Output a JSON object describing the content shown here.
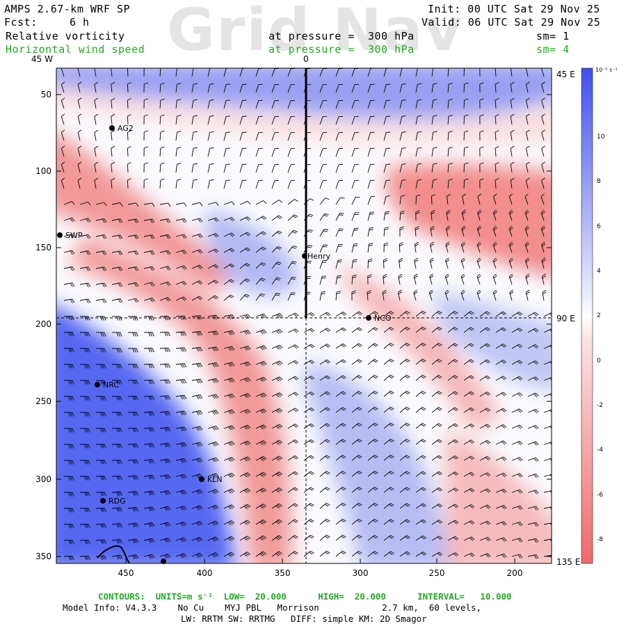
{
  "header": {
    "model": "AMPS 2.67-km WRF SP",
    "forecast_label": "Fcst:",
    "forecast_value": "6 h",
    "init": "Init: 00 UTC Sat 29 Nov 25",
    "valid": "Valid: 06 UTC Sat 29 Nov 25",
    "field1_name": "Relative vorticity",
    "field1_pressure": "at pressure =  300 hPa",
    "field1_sm": "sm= 1",
    "field2_name": "Horizontal wind speed",
    "field2_pressure": "at pressure =  300 hPa",
    "field2_sm": "sm= 4",
    "watermark": "Grid Nav"
  },
  "colors": {
    "positive": "#4455ee",
    "negative": "#f07070",
    "green_text": "#22aa22"
  },
  "map": {
    "longitude_labels": {
      "top_left": "45 W",
      "top_center": "0",
      "right_top": "45 E",
      "right_mid": "90 E",
      "right_bottom": "135 E"
    },
    "y_ticks": [
      "50",
      "100",
      "150",
      "200",
      "250",
      "300",
      "350"
    ],
    "x_ticks": [
      "450",
      "400",
      "350",
      "300",
      "250",
      "200"
    ],
    "stations": [
      {
        "name": "AG2"
      },
      {
        "name": "SWP"
      },
      {
        "name": "Henry"
      },
      {
        "name": "NCO"
      },
      {
        "name": "NRC"
      },
      {
        "name": "KLN"
      },
      {
        "name": "RDG"
      }
    ]
  },
  "colorbar": {
    "unit": "10⁻⁵ s⁻¹",
    "ticks": [
      "10",
      "8",
      "6",
      "4",
      "2",
      "0",
      "-2",
      "-4",
      "-6",
      "-8"
    ]
  },
  "footer": {
    "contours": "CONTOURS:  UNITS=m s⁻¹  LOW=  20.000      HIGH=  20.000      INTERVAL=   10.000",
    "model_info": "Model Info: V4.3.3    No Cu    MYJ PBL   Morrison            2.7 km,  60 levels,",
    "physics": "LW: RRTM SW: RRTMG   DIFF: simple KM: 2D Smagor"
  }
}
